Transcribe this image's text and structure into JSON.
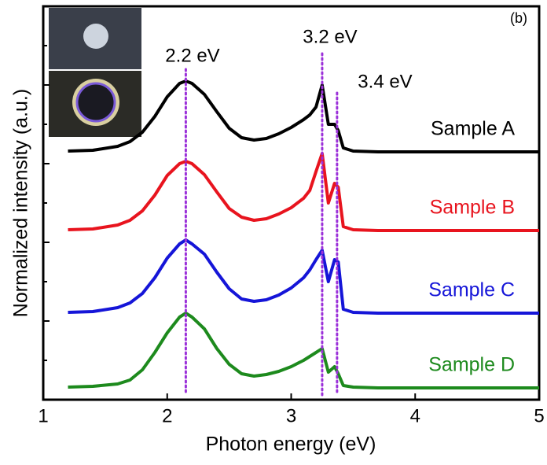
{
  "chart_data": {
    "type": "line",
    "panel_label": "(b)",
    "x_label": "Photon energy (eV)",
    "y_label": "Normalized intensity (a.u.)",
    "x": [
      1.2,
      1.4,
      1.6,
      1.7,
      1.8,
      1.9,
      2.0,
      2.1,
      2.15,
      2.2,
      2.3,
      2.4,
      2.5,
      2.6,
      2.7,
      2.8,
      2.9,
      3.0,
      3.1,
      3.15,
      3.2,
      3.25,
      3.3,
      3.35,
      3.38,
      3.42,
      3.5,
      3.7,
      4.0,
      4.5,
      5.0
    ],
    "series": [
      {
        "name": "Sample A",
        "color": "#000000",
        "values": [
          3.16,
          3.17,
          3.22,
          3.28,
          3.4,
          3.6,
          3.85,
          4.02,
          4.05,
          4.02,
          3.88,
          3.66,
          3.45,
          3.33,
          3.3,
          3.32,
          3.38,
          3.46,
          3.56,
          3.62,
          3.72,
          4.0,
          3.5,
          3.5,
          3.42,
          3.2,
          3.16,
          3.15,
          3.15,
          3.15,
          3.15
        ]
      },
      {
        "name": "Sample B",
        "color": "#e8141e",
        "values": [
          2.16,
          2.17,
          2.22,
          2.28,
          2.4,
          2.6,
          2.85,
          3.0,
          3.03,
          3.0,
          2.86,
          2.64,
          2.43,
          2.32,
          2.28,
          2.3,
          2.36,
          2.44,
          2.56,
          2.66,
          2.9,
          3.13,
          2.5,
          2.75,
          2.7,
          2.2,
          2.16,
          2.15,
          2.15,
          2.15,
          2.15
        ]
      },
      {
        "name": "Sample C",
        "color": "#1515d8",
        "values": [
          1.11,
          1.12,
          1.17,
          1.23,
          1.35,
          1.55,
          1.8,
          1.98,
          2.03,
          1.98,
          1.85,
          1.62,
          1.41,
          1.28,
          1.25,
          1.27,
          1.33,
          1.42,
          1.55,
          1.65,
          1.78,
          1.9,
          1.5,
          1.78,
          1.75,
          1.15,
          1.11,
          1.1,
          1.1,
          1.1,
          1.1
        ]
      },
      {
        "name": "Sample D",
        "color": "#1d8a1d",
        "values": [
          0.16,
          0.17,
          0.2,
          0.25,
          0.38,
          0.6,
          0.85,
          1.05,
          1.1,
          1.05,
          0.9,
          0.65,
          0.45,
          0.33,
          0.3,
          0.32,
          0.36,
          0.42,
          0.5,
          0.55,
          0.6,
          0.65,
          0.35,
          0.42,
          0.33,
          0.18,
          0.16,
          0.15,
          0.15,
          0.15,
          0.15
        ]
      }
    ],
    "annotations": [
      {
        "text": "2.2 eV",
        "x": 2.15
      },
      {
        "text": "3.2 eV",
        "x": 3.25
      },
      {
        "text": "3.4 eV",
        "x": 3.37
      }
    ],
    "annotation_color": "#9b30d9",
    "xlim": [
      1,
      5
    ],
    "ylim": [
      0,
      5
    ],
    "xticks": [
      1,
      2,
      3,
      4,
      5
    ],
    "yticks": [
      0.5,
      1,
      1.5,
      2,
      2.5,
      3,
      3.5,
      4,
      4.5
    ]
  }
}
